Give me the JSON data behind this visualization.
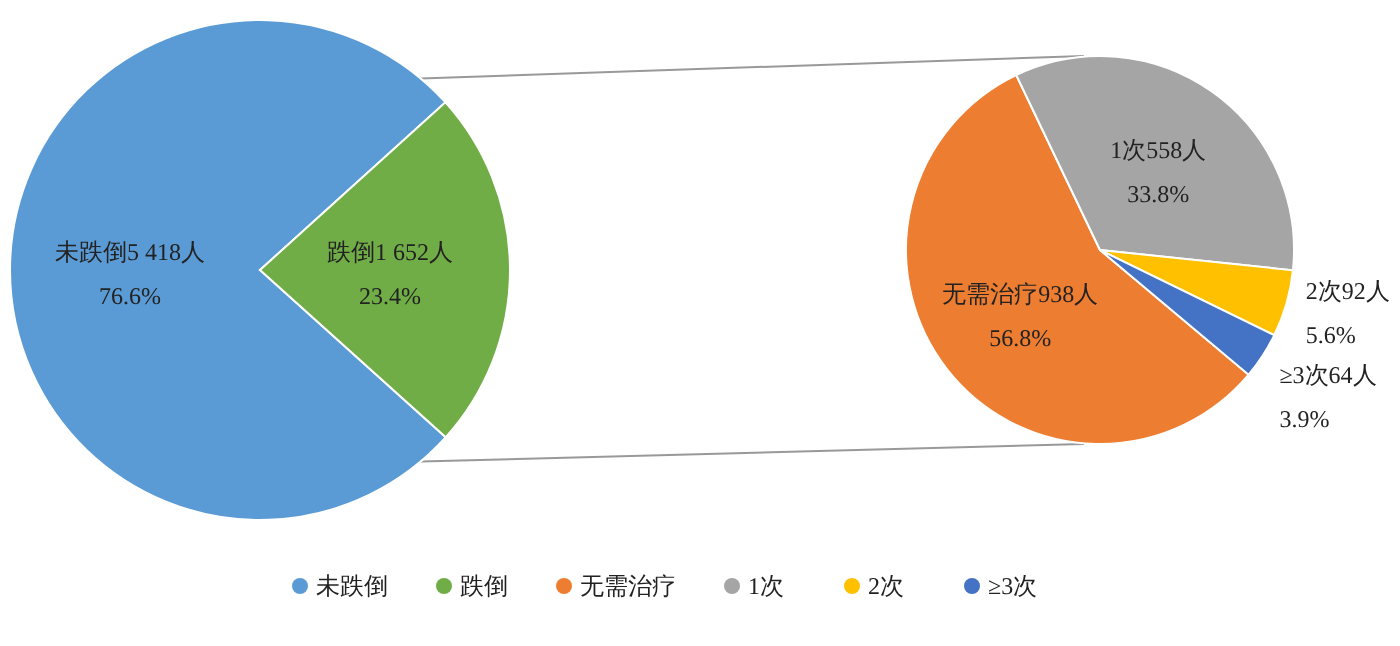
{
  "chart_data": [
    {
      "type": "pie",
      "categories": [
        "未跌倒",
        "跌倒"
      ],
      "values": [
        5418,
        1652
      ],
      "colors": [
        "#5b9bd5",
        "#70ad47"
      ],
      "value_labels": [
        "5 418人\n76.6%",
        "1 652人\n23.4%"
      ],
      "legend": "bottom"
    },
    {
      "type": "pie",
      "categories": [
        "无需治疗",
        "1次",
        "2次",
        "≥3次"
      ],
      "values": [
        938,
        558,
        92,
        64
      ],
      "colors": [
        "#ed7d31",
        "#a5a5a5",
        "#ffc000",
        "#4472c4"
      ],
      "value_labels": [
        "938人\n56.8%",
        "558人\n33.8%",
        "92人\n5.6%",
        "64人\n3.9%"
      ],
      "legend": "bottom"
    }
  ]
}
